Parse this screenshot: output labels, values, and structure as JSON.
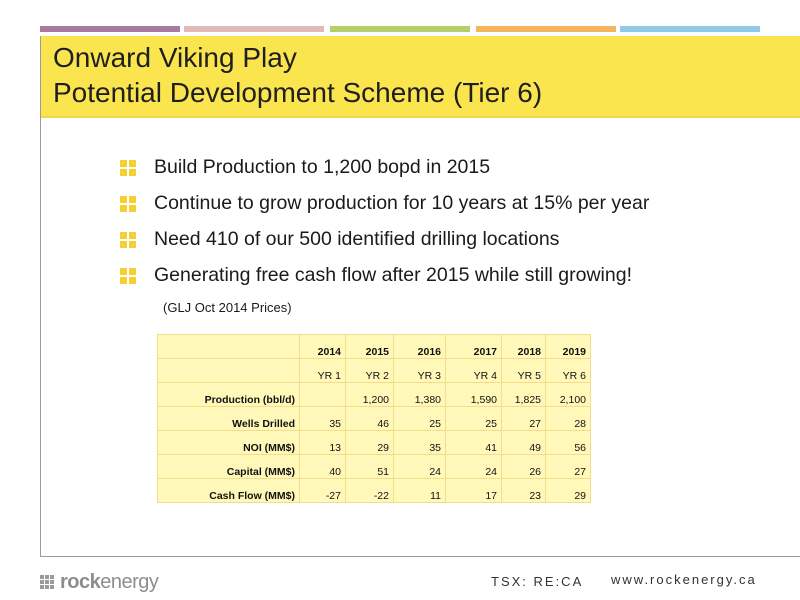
{
  "colors": {
    "stripes": [
      "#a9799f",
      "#e2b9b7",
      "#b5cd6a",
      "#f4b55c",
      "#92c9e8"
    ],
    "title_background": "#fbe54f",
    "table_background": "#fff8b8",
    "bullet_icon": "#f5cf2f"
  },
  "title": {
    "line1": "Onward Viking Play",
    "line2": "Potential Development Scheme (Tier 6)"
  },
  "bullets": [
    "Build Production to 1,200 bopd in 2015",
    "Continue to grow production for 10 years at 15% per year",
    "Need 410 of our 500 identified drilling locations",
    "Generating free cash flow after 2015 while still growing!"
  ],
  "prices_note": "(GLJ Oct 2014 Prices)",
  "table": {
    "years": [
      "2014",
      "2015",
      "2016",
      "2017",
      "2018",
      "2019"
    ],
    "year_labels": [
      "YR 1",
      "YR 2",
      "YR 3",
      "YR 4",
      "YR 5",
      "YR 6"
    ],
    "rows": [
      {
        "label": "Production (bbl/d)",
        "values": [
          "",
          "1,200",
          "1,380",
          "1,590",
          "1,825",
          "2,100"
        ]
      },
      {
        "label": "Wells Drilled",
        "values": [
          "35",
          "46",
          "25",
          "25",
          "27",
          "28"
        ]
      },
      {
        "label": "NOI (MM$)",
        "values": [
          "13",
          "29",
          "35",
          "41",
          "49",
          "56"
        ]
      },
      {
        "label": "Capital (MM$)",
        "values": [
          "40",
          "51",
          "24",
          "24",
          "26",
          "27"
        ]
      },
      {
        "label": "Cash Flow (MM$)",
        "values": [
          "-27",
          "-22",
          "11",
          "17",
          "23",
          "29"
        ]
      }
    ]
  },
  "footer": {
    "logo_bold": "rock",
    "logo_light": "energy",
    "ticker": "TSX: RE:CA",
    "url": "www.rockenergy.ca"
  }
}
